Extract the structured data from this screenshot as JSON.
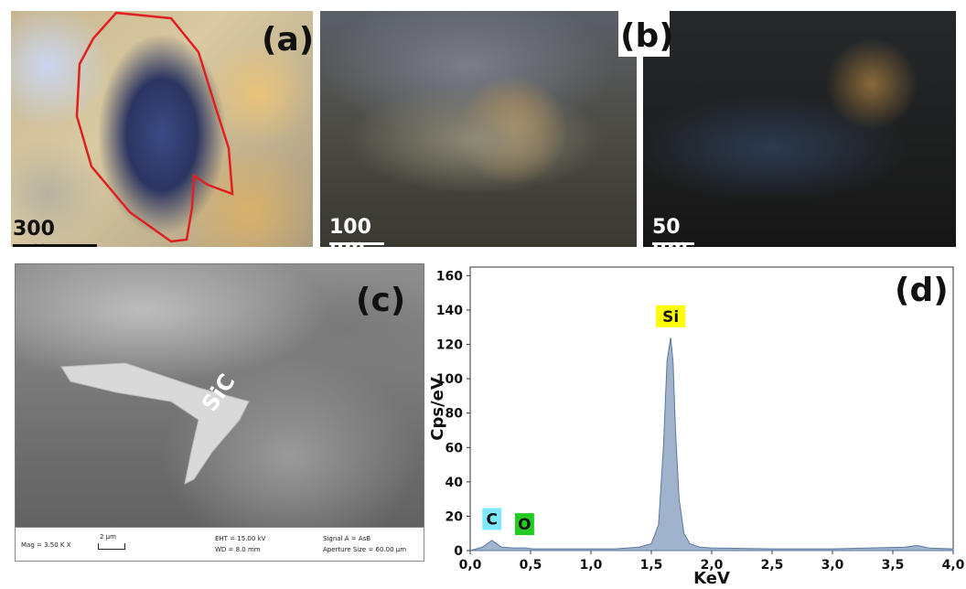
{
  "panels": {
    "a": {
      "label": "(a)",
      "scale": "300 µm"
    },
    "b": {
      "label": "(b)",
      "scale_left": "100 µm",
      "scale_right": "50 µm"
    },
    "c": {
      "label": "(c)",
      "annotation": "SiC",
      "info": {
        "mag": "Mag =  3.50 K X",
        "scale": "2 µm",
        "eht": "EHT = 15.00 kV",
        "wd": "WD =  8.0 mm",
        "signal": "Signal A = AsB",
        "aperture": "Aperture Size = 60.00 µm"
      }
    },
    "d": {
      "label": "(d)"
    }
  },
  "colors": {
    "outline_red": "#e02020",
    "spectrum_fill": "#9fb3cc",
    "si_tag": "#ffff00",
    "c_tag": "#7fe8ff",
    "o_tag": "#22cc22"
  },
  "chart_data": {
    "type": "area",
    "xlabel": "KeV",
    "ylabel": "Cps/eV",
    "xlim": [
      0,
      4
    ],
    "ylim": [
      0,
      165
    ],
    "x_ticks": [
      "0,0",
      "0,5",
      "1,0",
      "1,5",
      "2,0",
      "2,5",
      "3,0",
      "3,5",
      "4,0"
    ],
    "y_ticks": [
      "0",
      "20",
      "40",
      "60",
      "80",
      "100",
      "120",
      "140",
      "160"
    ],
    "series": [
      {
        "x": [
          0.0,
          0.05,
          0.1,
          0.14,
          0.18,
          0.22,
          0.26,
          0.35,
          0.45,
          0.52,
          0.6,
          0.8,
          1.0,
          1.2,
          1.4,
          1.5,
          1.56,
          1.6,
          1.63,
          1.66,
          1.68,
          1.7,
          1.73,
          1.77,
          1.82,
          1.9,
          2.0,
          2.5,
          3.0,
          3.6,
          3.7,
          3.8,
          4.0
        ],
        "y": [
          0,
          1,
          2,
          4,
          6,
          4,
          2,
          1.5,
          1.5,
          1,
          1,
          1,
          1,
          1,
          2,
          4,
          15,
          60,
          110,
          124,
          110,
          70,
          30,
          10,
          4,
          2,
          1.5,
          1,
          1,
          2,
          3,
          1.5,
          1
        ]
      }
    ],
    "peak_labels": [
      {
        "text": "Si",
        "x": 1.66,
        "y": 130
      },
      {
        "text": "C",
        "x": 0.18,
        "y": 12
      },
      {
        "text": "O",
        "x": 0.45,
        "y": 9
      }
    ]
  }
}
